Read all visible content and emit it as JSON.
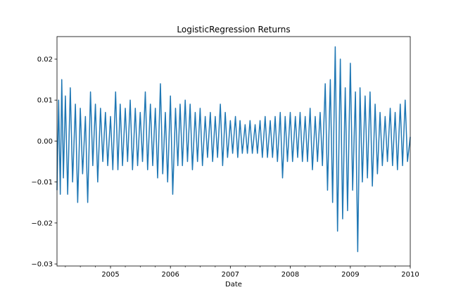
{
  "chart_data": {
    "type": "line",
    "title": "LogisticRegression Returns",
    "xlabel": "Date",
    "ylabel": "",
    "x_range": [
      "2004-02-10",
      "2010-01-01"
    ],
    "ylim": [
      -0.0305,
      0.0255
    ],
    "x_ticks": [
      {
        "date": "2005-01-01",
        "label": "2005"
      },
      {
        "date": "2006-01-01",
        "label": "2006"
      },
      {
        "date": "2007-01-01",
        "label": "2007"
      },
      {
        "date": "2008-01-01",
        "label": "2008"
      },
      {
        "date": "2009-01-01",
        "label": "2009"
      },
      {
        "date": "2010-01-01",
        "label": "2010"
      }
    ],
    "y_ticks": [
      {
        "value": 0.02,
        "label": "0.02"
      },
      {
        "value": 0.01,
        "label": "0.01"
      },
      {
        "value": 0.0,
        "label": "0.00"
      },
      {
        "value": -0.01,
        "label": "−0.01"
      },
      {
        "value": -0.02,
        "label": "−0.02"
      },
      {
        "value": -0.03,
        "label": "−0.03"
      }
    ],
    "grid": false,
    "line_color": "#1f77b4",
    "series": [
      {
        "x": [
          "2004-02-10",
          "2004-02-20",
          "2004-03-01",
          "2004-03-10",
          "2004-03-20",
          "2004-04-01",
          "2004-04-15",
          "2004-05-01",
          "2004-05-15",
          "2004-06-01",
          "2004-06-15",
          "2004-07-01",
          "2004-07-15",
          "2004-08-01",
          "2004-08-15",
          "2004-09-01",
          "2004-09-15",
          "2004-10-01",
          "2004-10-15",
          "2004-11-01",
          "2004-11-15",
          "2004-12-01",
          "2004-12-15",
          "2005-01-01",
          "2005-01-15",
          "2005-02-01",
          "2005-02-15",
          "2005-03-01",
          "2005-03-15",
          "2005-04-01",
          "2005-04-15",
          "2005-05-01",
          "2005-05-15",
          "2005-06-01",
          "2005-06-15",
          "2005-07-01",
          "2005-07-15",
          "2005-08-01",
          "2005-08-15",
          "2005-09-01",
          "2005-09-15",
          "2005-10-01",
          "2005-10-15",
          "2005-11-01",
          "2005-11-15",
          "2005-12-01",
          "2005-12-15",
          "2006-01-01",
          "2006-01-15",
          "2006-02-01",
          "2006-02-15",
          "2006-03-01",
          "2006-03-15",
          "2006-04-01",
          "2006-04-15",
          "2006-05-01",
          "2006-05-15",
          "2006-06-01",
          "2006-06-15",
          "2006-07-01",
          "2006-07-15",
          "2006-08-01",
          "2006-08-15",
          "2006-09-01",
          "2006-09-15",
          "2006-10-01",
          "2006-10-15",
          "2006-11-01",
          "2006-11-15",
          "2006-12-01",
          "2006-12-15",
          "2007-01-01",
          "2007-01-15",
          "2007-02-01",
          "2007-02-15",
          "2007-03-01",
          "2007-03-15",
          "2007-04-01",
          "2007-04-15",
          "2007-05-01",
          "2007-05-15",
          "2007-06-01",
          "2007-06-15",
          "2007-07-01",
          "2007-07-15",
          "2007-08-01",
          "2007-08-15",
          "2007-09-01",
          "2007-09-15",
          "2007-10-01",
          "2007-10-15",
          "2007-11-01",
          "2007-11-15",
          "2007-12-01",
          "2007-12-15",
          "2008-01-01",
          "2008-01-15",
          "2008-02-01",
          "2008-02-15",
          "2008-03-01",
          "2008-03-15",
          "2008-04-01",
          "2008-04-15",
          "2008-05-01",
          "2008-05-15",
          "2008-06-01",
          "2008-06-15",
          "2008-07-01",
          "2008-07-15",
          "2008-08-01",
          "2008-08-15",
          "2008-09-01",
          "2008-09-15",
          "2008-10-01",
          "2008-10-15",
          "2008-11-01",
          "2008-11-15",
          "2008-12-01",
          "2008-12-15",
          "2009-01-01",
          "2009-01-15",
          "2009-02-01",
          "2009-02-15",
          "2009-03-01",
          "2009-03-15",
          "2009-04-01",
          "2009-04-15",
          "2009-05-01",
          "2009-05-15",
          "2009-06-01",
          "2009-06-15",
          "2009-07-01",
          "2009-07-15",
          "2009-08-01",
          "2009-08-15",
          "2009-09-01",
          "2009-09-15",
          "2009-10-01",
          "2009-10-15",
          "2009-11-01",
          "2009-11-15",
          "2009-12-01",
          "2009-12-15",
          "2010-01-01"
        ],
        "y": [
          -0.012,
          0.01,
          -0.013,
          0.015,
          -0.009,
          0.011,
          -0.013,
          0.013,
          -0.01,
          0.009,
          -0.015,
          0.008,
          -0.008,
          0.006,
          -0.015,
          0.012,
          -0.006,
          0.009,
          -0.01,
          0.008,
          -0.005,
          0.007,
          -0.006,
          0.006,
          -0.007,
          0.012,
          -0.007,
          0.009,
          -0.006,
          0.008,
          -0.005,
          0.01,
          -0.007,
          0.008,
          -0.006,
          0.007,
          -0.005,
          0.012,
          -0.007,
          0.009,
          -0.006,
          0.008,
          -0.009,
          0.014,
          -0.008,
          0.007,
          -0.01,
          0.011,
          -0.013,
          0.008,
          -0.006,
          0.009,
          -0.006,
          0.01,
          -0.005,
          0.009,
          -0.007,
          0.007,
          -0.005,
          0.008,
          -0.006,
          0.006,
          -0.004,
          0.007,
          -0.005,
          0.006,
          -0.004,
          0.009,
          -0.006,
          0.007,
          -0.004,
          0.005,
          -0.003,
          0.006,
          -0.004,
          0.005,
          -0.003,
          0.004,
          -0.003,
          0.005,
          -0.003,
          0.004,
          -0.003,
          0.005,
          -0.004,
          0.006,
          -0.004,
          0.005,
          -0.004,
          0.006,
          -0.005,
          0.007,
          -0.009,
          0.006,
          -0.005,
          0.007,
          -0.005,
          0.006,
          -0.004,
          0.007,
          -0.005,
          0.006,
          -0.005,
          0.008,
          -0.007,
          0.006,
          -0.005,
          0.007,
          -0.006,
          0.014,
          -0.012,
          0.015,
          -0.015,
          0.023,
          -0.022,
          0.02,
          -0.019,
          0.013,
          -0.017,
          0.019,
          -0.012,
          0.012,
          -0.027,
          0.013,
          -0.01,
          0.011,
          -0.009,
          0.012,
          -0.011,
          0.009,
          -0.008,
          0.007,
          -0.006,
          0.006,
          -0.005,
          0.008,
          -0.006,
          0.007,
          -0.007,
          0.009,
          -0.006,
          0.01,
          -0.005,
          0.001
        ]
      }
    ]
  }
}
